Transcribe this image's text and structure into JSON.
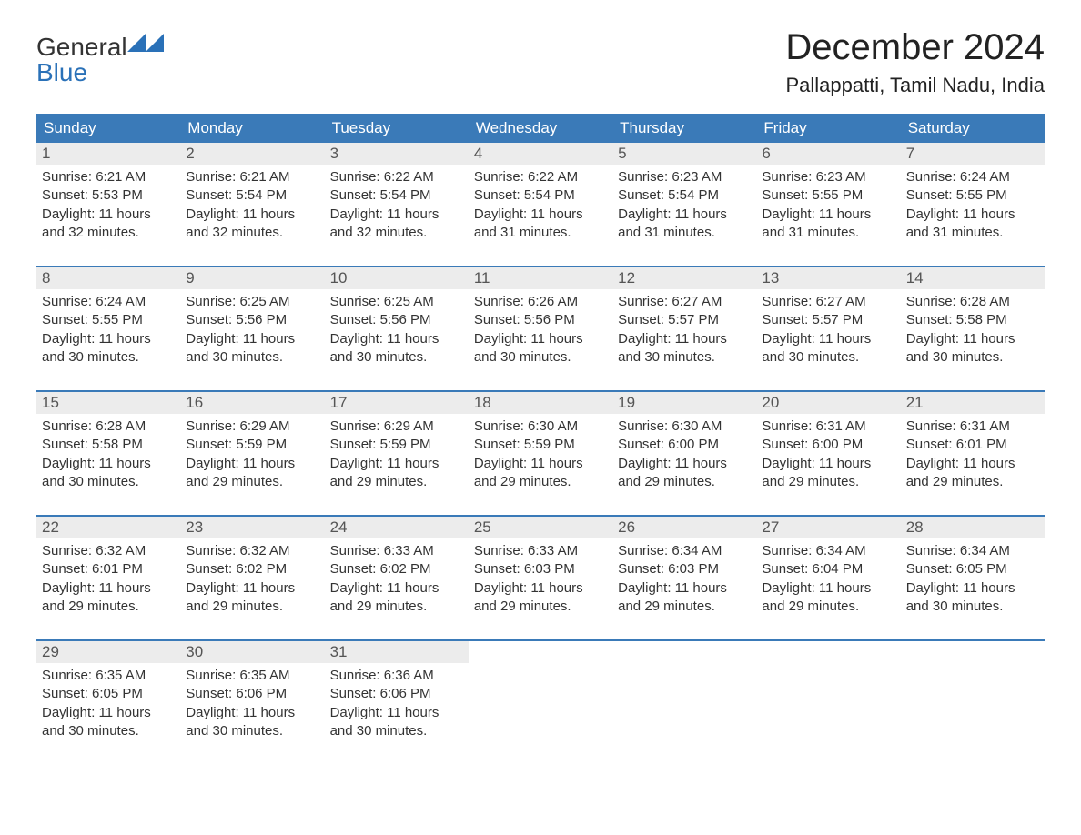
{
  "brand": {
    "word1": "General",
    "word2": "Blue",
    "logo_color": "#2a71b8"
  },
  "title": "December 2024",
  "location": "Pallappatti, Tamil Nadu, India",
  "colors": {
    "header_bg": "#3a7ab8",
    "header_text": "#ffffff",
    "daynum_bg": "#ececec",
    "daynum_text": "#555555",
    "body_text": "#333333",
    "week_border": "#3a7ab8",
    "page_bg": "#ffffff"
  },
  "fonts": {
    "title_size_pt": 30,
    "location_size_pt": 17,
    "dow_size_pt": 13,
    "body_size_pt": 11
  },
  "days_of_week": [
    "Sunday",
    "Monday",
    "Tuesday",
    "Wednesday",
    "Thursday",
    "Friday",
    "Saturday"
  ],
  "sunrise_label": "Sunrise",
  "sunset_label": "Sunset",
  "daylight_label": "Daylight",
  "weeks": [
    [
      {
        "n": "1",
        "sr": "6:21 AM",
        "ss": "5:53 PM",
        "dl": "11 hours and 32 minutes."
      },
      {
        "n": "2",
        "sr": "6:21 AM",
        "ss": "5:54 PM",
        "dl": "11 hours and 32 minutes."
      },
      {
        "n": "3",
        "sr": "6:22 AM",
        "ss": "5:54 PM",
        "dl": "11 hours and 32 minutes."
      },
      {
        "n": "4",
        "sr": "6:22 AM",
        "ss": "5:54 PM",
        "dl": "11 hours and 31 minutes."
      },
      {
        "n": "5",
        "sr": "6:23 AM",
        "ss": "5:54 PM",
        "dl": "11 hours and 31 minutes."
      },
      {
        "n": "6",
        "sr": "6:23 AM",
        "ss": "5:55 PM",
        "dl": "11 hours and 31 minutes."
      },
      {
        "n": "7",
        "sr": "6:24 AM",
        "ss": "5:55 PM",
        "dl": "11 hours and 31 minutes."
      }
    ],
    [
      {
        "n": "8",
        "sr": "6:24 AM",
        "ss": "5:55 PM",
        "dl": "11 hours and 30 minutes."
      },
      {
        "n": "9",
        "sr": "6:25 AM",
        "ss": "5:56 PM",
        "dl": "11 hours and 30 minutes."
      },
      {
        "n": "10",
        "sr": "6:25 AM",
        "ss": "5:56 PM",
        "dl": "11 hours and 30 minutes."
      },
      {
        "n": "11",
        "sr": "6:26 AM",
        "ss": "5:56 PM",
        "dl": "11 hours and 30 minutes."
      },
      {
        "n": "12",
        "sr": "6:27 AM",
        "ss": "5:57 PM",
        "dl": "11 hours and 30 minutes."
      },
      {
        "n": "13",
        "sr": "6:27 AM",
        "ss": "5:57 PM",
        "dl": "11 hours and 30 minutes."
      },
      {
        "n": "14",
        "sr": "6:28 AM",
        "ss": "5:58 PM",
        "dl": "11 hours and 30 minutes."
      }
    ],
    [
      {
        "n": "15",
        "sr": "6:28 AM",
        "ss": "5:58 PM",
        "dl": "11 hours and 30 minutes."
      },
      {
        "n": "16",
        "sr": "6:29 AM",
        "ss": "5:59 PM",
        "dl": "11 hours and 29 minutes."
      },
      {
        "n": "17",
        "sr": "6:29 AM",
        "ss": "5:59 PM",
        "dl": "11 hours and 29 minutes."
      },
      {
        "n": "18",
        "sr": "6:30 AM",
        "ss": "5:59 PM",
        "dl": "11 hours and 29 minutes."
      },
      {
        "n": "19",
        "sr": "6:30 AM",
        "ss": "6:00 PM",
        "dl": "11 hours and 29 minutes."
      },
      {
        "n": "20",
        "sr": "6:31 AM",
        "ss": "6:00 PM",
        "dl": "11 hours and 29 minutes."
      },
      {
        "n": "21",
        "sr": "6:31 AM",
        "ss": "6:01 PM",
        "dl": "11 hours and 29 minutes."
      }
    ],
    [
      {
        "n": "22",
        "sr": "6:32 AM",
        "ss": "6:01 PM",
        "dl": "11 hours and 29 minutes."
      },
      {
        "n": "23",
        "sr": "6:32 AM",
        "ss": "6:02 PM",
        "dl": "11 hours and 29 minutes."
      },
      {
        "n": "24",
        "sr": "6:33 AM",
        "ss": "6:02 PM",
        "dl": "11 hours and 29 minutes."
      },
      {
        "n": "25",
        "sr": "6:33 AM",
        "ss": "6:03 PM",
        "dl": "11 hours and 29 minutes."
      },
      {
        "n": "26",
        "sr": "6:34 AM",
        "ss": "6:03 PM",
        "dl": "11 hours and 29 minutes."
      },
      {
        "n": "27",
        "sr": "6:34 AM",
        "ss": "6:04 PM",
        "dl": "11 hours and 29 minutes."
      },
      {
        "n": "28",
        "sr": "6:34 AM",
        "ss": "6:05 PM",
        "dl": "11 hours and 30 minutes."
      }
    ],
    [
      {
        "n": "29",
        "sr": "6:35 AM",
        "ss": "6:05 PM",
        "dl": "11 hours and 30 minutes."
      },
      {
        "n": "30",
        "sr": "6:35 AM",
        "ss": "6:06 PM",
        "dl": "11 hours and 30 minutes."
      },
      {
        "n": "31",
        "sr": "6:36 AM",
        "ss": "6:06 PM",
        "dl": "11 hours and 30 minutes."
      },
      null,
      null,
      null,
      null
    ]
  ]
}
